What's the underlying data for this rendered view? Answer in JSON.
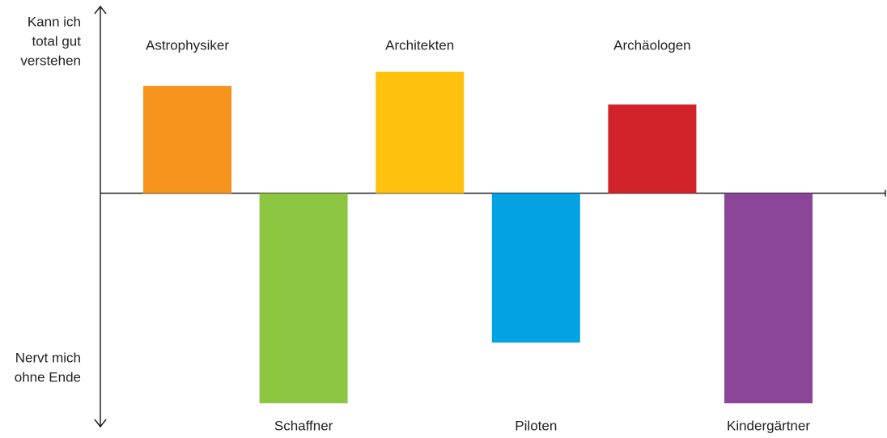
{
  "chart_data": {
    "type": "bar",
    "y_label_top": [
      "Kann ich",
      "total gut",
      "verstehen"
    ],
    "y_label_bottom": [
      "Nervt mich",
      "ohne Ende"
    ],
    "categories": [
      "Astrophysiker",
      "Schaffner",
      "Architekten",
      "Piloten",
      "Archäologen",
      "Kindergärtner"
    ],
    "values": [
      2.3,
      -4.5,
      2.6,
      -3.2,
      1.9,
      -4.5
    ],
    "colors": [
      "#F7941E",
      "#8CC540",
      "#FEC20E",
      "#03A2E2",
      "#D2232A",
      "#8B4699"
    ],
    "ylim": [
      -5,
      4
    ],
    "grid": false
  }
}
